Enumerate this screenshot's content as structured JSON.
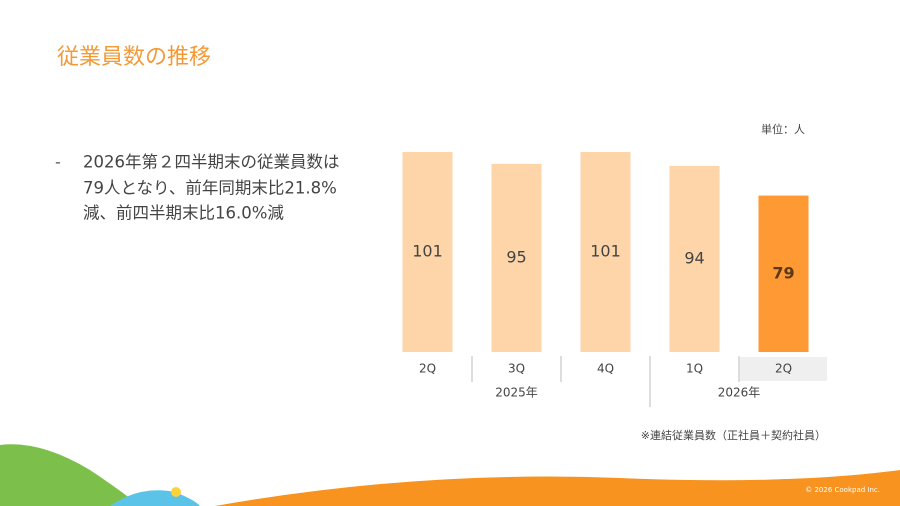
{
  "title": "従業員数の推移",
  "bullet": {
    "marker": "-",
    "lines": [
      "2026年第２四半期末の従業員数は",
      "79人となり、前年同期末比21.8%",
      "減、前四半期末比16.0%減"
    ]
  },
  "chart_data": {
    "type": "bar",
    "unit": "単位：人",
    "groups": [
      {
        "label": "2025年",
        "categories": [
          "2Q",
          "3Q",
          "4Q"
        ]
      },
      {
        "label": "2026年",
        "categories": [
          "1Q",
          "2Q"
        ]
      }
    ],
    "values": [
      101,
      95,
      101,
      94,
      79
    ],
    "colors": [
      "#fdd5a8",
      "#fdd5a8",
      "#fdd5a8",
      "#fdd5a8",
      "#ff9933"
    ],
    "note": "※連結従業員数（正社員＋契約社員）"
  },
  "footer": "© 2026 Cookpad Inc."
}
